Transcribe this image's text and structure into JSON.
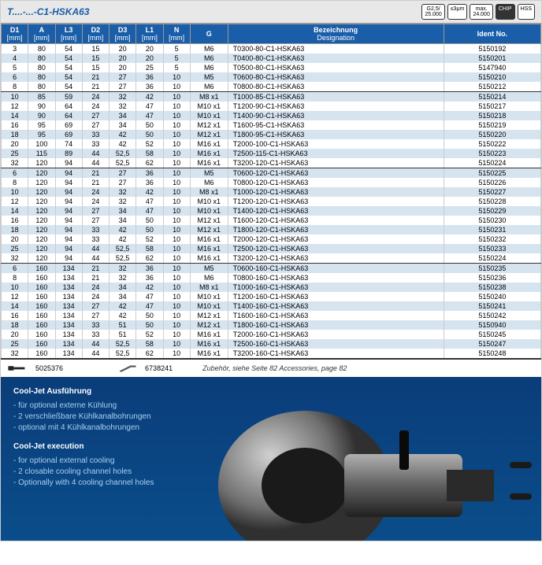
{
  "title": "T....-...-C1-HSKA63",
  "badges": [
    {
      "top": "G2,5/",
      "bot": "25.000",
      "dark": false
    },
    {
      "top": "",
      "bot": "≤3μm",
      "dark": false
    },
    {
      "top": "max.",
      "bot": "24.000",
      "dark": false
    },
    {
      "top": "",
      "bot": "CHIP",
      "dark": true
    },
    {
      "top": "",
      "bot": "HSS",
      "dark": false
    }
  ],
  "columns": [
    {
      "h": "D1",
      "u": "[mm]"
    },
    {
      "h": "A",
      "u": "[mm]"
    },
    {
      "h": "L3",
      "u": "[mm]"
    },
    {
      "h": "D2",
      "u": "[mm]"
    },
    {
      "h": "D3",
      "u": "[mm]"
    },
    {
      "h": "L1",
      "u": "[mm]"
    },
    {
      "h": "N",
      "u": "[mm]"
    },
    {
      "h": "G",
      "u": ""
    },
    {
      "h": "Bezeichnung",
      "u": "Designation"
    },
    {
      "h": "Ident No.",
      "u": ""
    }
  ],
  "rows": [
    {
      "c": [
        "3",
        "80",
        "54",
        "15",
        "20",
        "20",
        "5",
        "M6",
        "T0300-80-C1-HSKA63",
        "5150192"
      ],
      "shade": false,
      "end": false
    },
    {
      "c": [
        "4",
        "80",
        "54",
        "15",
        "20",
        "20",
        "5",
        "M6",
        "T0400-80-C1-HSKA63",
        "5150201"
      ],
      "shade": true,
      "end": false
    },
    {
      "c": [
        "5",
        "80",
        "54",
        "15",
        "20",
        "25",
        "5",
        "M6",
        "T0500-80-C1-HSKA63",
        "5147940"
      ],
      "shade": false,
      "end": false
    },
    {
      "c": [
        "6",
        "80",
        "54",
        "21",
        "27",
        "36",
        "10",
        "M5",
        "T0600-80-C1-HSKA63",
        "5150210"
      ],
      "shade": true,
      "end": false
    },
    {
      "c": [
        "8",
        "80",
        "54",
        "21",
        "27",
        "36",
        "10",
        "M6",
        "T0800-80-C1-HSKA63",
        "5150212"
      ],
      "shade": false,
      "end": true
    },
    {
      "c": [
        "10",
        "85",
        "59",
        "24",
        "32",
        "42",
        "10",
        "M8 x1",
        "T1000-85-C1-HSKA63",
        "5150214"
      ],
      "shade": true,
      "end": false
    },
    {
      "c": [
        "12",
        "90",
        "64",
        "24",
        "32",
        "47",
        "10",
        "M10 x1",
        "T1200-90-C1-HSKA63",
        "5150217"
      ],
      "shade": false,
      "end": false
    },
    {
      "c": [
        "14",
        "90",
        "64",
        "27",
        "34",
        "47",
        "10",
        "M10 x1",
        "T1400-90-C1-HSKA63",
        "5150218"
      ],
      "shade": true,
      "end": false
    },
    {
      "c": [
        "16",
        "95",
        "69",
        "27",
        "34",
        "50",
        "10",
        "M12 x1",
        "T1600-95-C1-HSKA63",
        "5150219"
      ],
      "shade": false,
      "end": false
    },
    {
      "c": [
        "18",
        "95",
        "69",
        "33",
        "42",
        "50",
        "10",
        "M12 x1",
        "T1800-95-C1-HSKA63",
        "5150220"
      ],
      "shade": true,
      "end": false
    },
    {
      "c": [
        "20",
        "100",
        "74",
        "33",
        "42",
        "52",
        "10",
        "M16 x1",
        "T2000-100-C1-HSKA63",
        "5150222"
      ],
      "shade": false,
      "end": false
    },
    {
      "c": [
        "25",
        "115",
        "89",
        "44",
        "52,5",
        "58",
        "10",
        "M16 x1",
        "T2500-115-C1-HSKA63",
        "5150223"
      ],
      "shade": true,
      "end": false
    },
    {
      "c": [
        "32",
        "120",
        "94",
        "44",
        "52,5",
        "62",
        "10",
        "M16 x1",
        "T3200-120-C1-HSKA63",
        "5150224"
      ],
      "shade": false,
      "end": true
    },
    {
      "c": [
        "6",
        "120",
        "94",
        "21",
        "27",
        "36",
        "10",
        "M5",
        "T0600-120-C1-HSKA63",
        "5150225"
      ],
      "shade": true,
      "end": false
    },
    {
      "c": [
        "8",
        "120",
        "94",
        "21",
        "27",
        "36",
        "10",
        "M6",
        "T0800-120-C1-HSKA63",
        "5150226"
      ],
      "shade": false,
      "end": false
    },
    {
      "c": [
        "10",
        "120",
        "94",
        "24",
        "32",
        "42",
        "10",
        "M8 x1",
        "T1000-120-C1-HSKA63",
        "5150227"
      ],
      "shade": true,
      "end": false
    },
    {
      "c": [
        "12",
        "120",
        "94",
        "24",
        "32",
        "47",
        "10",
        "M10 x1",
        "T1200-120-C1-HSKA63",
        "5150228"
      ],
      "shade": false,
      "end": false
    },
    {
      "c": [
        "14",
        "120",
        "94",
        "27",
        "34",
        "47",
        "10",
        "M10 x1",
        "T1400-120-C1-HSKA63",
        "5150229"
      ],
      "shade": true,
      "end": false
    },
    {
      "c": [
        "16",
        "120",
        "94",
        "27",
        "34",
        "50",
        "10",
        "M12 x1",
        "T1600-120-C1-HSKA63",
        "5150230"
      ],
      "shade": false,
      "end": false
    },
    {
      "c": [
        "18",
        "120",
        "94",
        "33",
        "42",
        "50",
        "10",
        "M12 x1",
        "T1800-120-C1-HSKA63",
        "5150231"
      ],
      "shade": true,
      "end": false
    },
    {
      "c": [
        "20",
        "120",
        "94",
        "33",
        "42",
        "52",
        "10",
        "M16 x1",
        "T2000-120-C1-HSKA63",
        "5150232"
      ],
      "shade": false,
      "end": false
    },
    {
      "c": [
        "25",
        "120",
        "94",
        "44",
        "52,5",
        "58",
        "10",
        "M16 x1",
        "T2500-120-C1-HSKA63",
        "5150233"
      ],
      "shade": true,
      "end": false
    },
    {
      "c": [
        "32",
        "120",
        "94",
        "44",
        "52,5",
        "62",
        "10",
        "M16 x1",
        "T3200-120-C1-HSKA63",
        "5150224"
      ],
      "shade": false,
      "end": true
    },
    {
      "c": [
        "6",
        "160",
        "134",
        "21",
        "32",
        "36",
        "10",
        "M5",
        "T0600-160-C1-HSKA63",
        "5150235"
      ],
      "shade": true,
      "end": false
    },
    {
      "c": [
        "8",
        "160",
        "134",
        "21",
        "32",
        "36",
        "10",
        "M6",
        "T0800-160-C1-HSKA63",
        "5150236"
      ],
      "shade": false,
      "end": false
    },
    {
      "c": [
        "10",
        "160",
        "134",
        "24",
        "34",
        "42",
        "10",
        "M8 x1",
        "T1000-160-C1-HSKA63",
        "5150238"
      ],
      "shade": true,
      "end": false
    },
    {
      "c": [
        "12",
        "160",
        "134",
        "24",
        "34",
        "47",
        "10",
        "M10 x1",
        "T1200-160-C1-HSKA63",
        "5150240"
      ],
      "shade": false,
      "end": false
    },
    {
      "c": [
        "14",
        "160",
        "134",
        "27",
        "42",
        "47",
        "10",
        "M10 x1",
        "T1400-160-C1-HSKA63",
        "5150241"
      ],
      "shade": true,
      "end": false
    },
    {
      "c": [
        "16",
        "160",
        "134",
        "27",
        "42",
        "50",
        "10",
        "M12 x1",
        "T1600-160-C1-HSKA63",
        "5150242"
      ],
      "shade": false,
      "end": false
    },
    {
      "c": [
        "18",
        "160",
        "134",
        "33",
        "51",
        "50",
        "10",
        "M12 x1",
        "T1800-160-C1-HSKA63",
        "5150940"
      ],
      "shade": true,
      "end": false
    },
    {
      "c": [
        "20",
        "160",
        "134",
        "33",
        "51",
        "52",
        "10",
        "M16 x1",
        "T2000-160-C1-HSKA63",
        "5150245"
      ],
      "shade": false,
      "end": false
    },
    {
      "c": [
        "25",
        "160",
        "134",
        "44",
        "52,5",
        "58",
        "10",
        "M16 x1",
        "T2500-160-C1-HSKA63",
        "5150247"
      ],
      "shade": true,
      "end": false
    },
    {
      "c": [
        "32",
        "160",
        "134",
        "44",
        "52,5",
        "62",
        "10",
        "M16 x1",
        "T3200-160-C1-HSKA63",
        "5150248"
      ],
      "shade": false,
      "end": true
    }
  ],
  "footer": {
    "code1": "5025376",
    "code2": "6738241",
    "note": "Zubehör, siehe Seite 82",
    "noteEn": "Accessories, page 82"
  },
  "info": {
    "deTitle": "Cool-Jet Ausführung",
    "de": [
      "für optional externe Kühlung",
      "2 verschließbare Kühlkanalbohrungen",
      "optional mit 4 Kühlkanalbohrungen"
    ],
    "enTitle": "Cool-Jet execution",
    "en": [
      "for optional external cooling",
      "2 closable cooling channel holes",
      "Optionally with 4 cooling channel holes"
    ]
  }
}
